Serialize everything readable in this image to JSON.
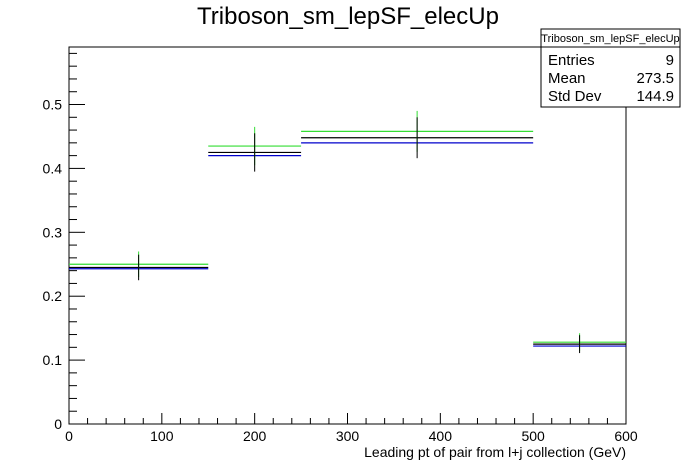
{
  "chart_data": {
    "type": "histogram",
    "title": "Triboson_sm_lepSF_elecUp",
    "xlabel": "Leading pt of pair from l+j collection (GeV)",
    "ylabel": "",
    "xlim": [
      0,
      600
    ],
    "ylim": [
      0,
      0.59
    ],
    "x_ticks": [
      0,
      100,
      200,
      300,
      400,
      500,
      600
    ],
    "y_ticks": [
      0,
      0.1,
      0.2,
      0.3,
      0.4,
      0.5
    ],
    "x_tick_labels": [
      "0",
      "100",
      "200",
      "300",
      "400",
      "500",
      "600"
    ],
    "y_tick_labels": [
      "0",
      "0.1",
      "0.2",
      "0.3",
      "0.4",
      "0.5"
    ],
    "bins": [
      {
        "low": 0,
        "high": 150,
        "center": 75,
        "nominal": 0.245,
        "error": 0.02,
        "green": 0.25,
        "blue": 0.243
      },
      {
        "low": 150,
        "high": 250,
        "center": 200,
        "nominal": 0.425,
        "error": 0.03,
        "green": 0.435,
        "blue": 0.42
      },
      {
        "low": 250,
        "high": 500,
        "center": 375,
        "nominal": 0.448,
        "error": 0.032,
        "green": 0.458,
        "blue": 0.44
      },
      {
        "low": 500,
        "high": 600,
        "center": 550,
        "nominal": 0.125,
        "error": 0.014,
        "green": 0.128,
        "blue": 0.122
      }
    ],
    "series_colors": {
      "nominal": "#000000",
      "green": "#33dd33",
      "blue": "#0000cc"
    },
    "stats_box": {
      "title": "Triboson_sm_lepSF_elecUp",
      "rows": [
        {
          "label": "Entries",
          "value": "9"
        },
        {
          "label": "Mean",
          "value": "273.5"
        },
        {
          "label": "Std Dev",
          "value": "144.9"
        }
      ]
    }
  }
}
